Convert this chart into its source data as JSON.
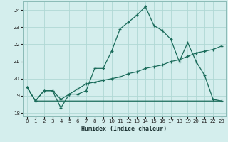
{
  "title": "",
  "xlabel": "Humidex (Indice chaleur)",
  "bg_color": "#d4eeed",
  "grid_color": "#b0d8d4",
  "line_color": "#1a6b5a",
  "xlim": [
    -0.5,
    23.5
  ],
  "ylim": [
    17.8,
    24.5
  ],
  "yticks": [
    18,
    19,
    20,
    21,
    22,
    23,
    24
  ],
  "xticks": [
    0,
    1,
    2,
    3,
    4,
    5,
    6,
    7,
    8,
    9,
    10,
    11,
    12,
    13,
    14,
    15,
    16,
    17,
    18,
    19,
    20,
    21,
    22,
    23
  ],
  "line1_x": [
    0,
    1,
    2,
    3,
    4,
    5,
    6,
    7,
    8,
    9,
    10,
    11,
    12,
    13,
    14,
    15,
    16,
    17,
    18,
    19,
    20,
    21,
    22,
    23
  ],
  "line1_y": [
    19.5,
    18.7,
    19.3,
    19.3,
    18.3,
    19.1,
    19.1,
    19.3,
    20.6,
    20.6,
    21.6,
    22.9,
    23.3,
    23.7,
    24.2,
    23.1,
    22.8,
    22.3,
    21.0,
    22.1,
    21.0,
    20.2,
    18.8,
    18.7
  ],
  "line2_x": [
    0,
    1,
    2,
    3,
    4,
    5,
    6,
    7,
    8,
    9,
    10,
    11,
    12,
    13,
    14,
    15,
    16,
    17,
    18,
    19,
    20,
    21,
    22,
    23
  ],
  "line2_y": [
    19.5,
    18.7,
    19.3,
    19.3,
    18.8,
    19.1,
    19.4,
    19.7,
    19.8,
    19.9,
    20.0,
    20.1,
    20.3,
    20.4,
    20.6,
    20.7,
    20.8,
    21.0,
    21.1,
    21.3,
    21.5,
    21.6,
    21.7,
    21.9
  ],
  "line3_x": [
    0,
    1,
    3,
    22,
    23
  ],
  "line3_y": [
    19.5,
    18.7,
    18.7,
    18.7,
    18.7
  ]
}
